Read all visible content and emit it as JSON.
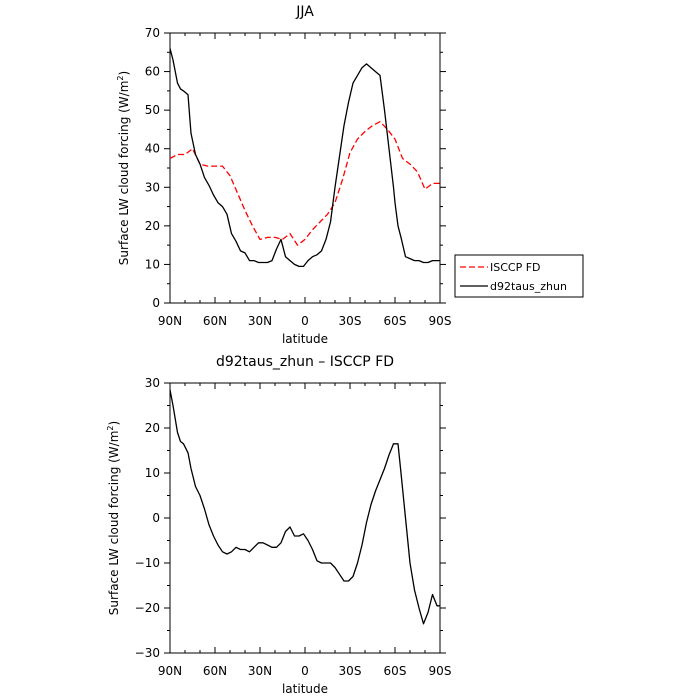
{
  "chart_data": [
    {
      "type": "line",
      "title": "JJA",
      "xlabel": "latitude",
      "ylabel": "Surface LW cloud forcing (W/m",
      "ylabel_sup": "2",
      "ylabel_end": ")",
      "xlim": [
        -90,
        90
      ],
      "ylim": [
        0,
        70
      ],
      "xticks": [
        -90,
        -60,
        -30,
        0,
        30,
        60,
        90
      ],
      "xticklabels": [
        "90N",
        "60N",
        "30N",
        "0",
        "30S",
        "60S",
        "90S"
      ],
      "yticks": [
        0,
        10,
        20,
        30,
        40,
        50,
        60,
        70
      ],
      "yticklabels": [
        "0",
        "10",
        "20",
        "30",
        "40",
        "50",
        "60",
        "70"
      ],
      "legend_position": "right",
      "series": [
        {
          "name": "ISCCP FD",
          "color": "#ff0000",
          "style": "dashed",
          "x": [
            -90,
            -85,
            -80,
            -75,
            -70,
            -65,
            -60,
            -55,
            -50,
            -45,
            -40,
            -35,
            -30,
            -25,
            -20,
            -15,
            -10,
            -5,
            0,
            5,
            10,
            15,
            20,
            25,
            30,
            35,
            40,
            45,
            50,
            55,
            60,
            65,
            70,
            75,
            80,
            85,
            90
          ],
          "values": [
            37.5,
            38.5,
            38.5,
            40,
            36,
            35.5,
            35.5,
            35.5,
            33,
            28.5,
            24,
            20,
            16.5,
            17,
            17,
            16.5,
            18,
            15,
            16.5,
            19,
            21,
            23,
            26,
            32,
            39,
            42.5,
            44.5,
            46,
            47,
            45,
            42.5,
            37.5,
            36,
            34,
            29.5,
            31,
            31
          ]
        },
        {
          "name": "d92taus_zhun",
          "color": "#000000",
          "style": "solid",
          "x": [
            -90,
            -88,
            -85,
            -83,
            -81,
            -78,
            -76,
            -73,
            -70,
            -67,
            -64,
            -61,
            -58,
            -55,
            -52,
            -49,
            -46,
            -43,
            -40,
            -37,
            -34,
            -31,
            -28,
            -25,
            -22,
            -19,
            -16,
            -13,
            -10,
            -7,
            -4,
            -1,
            2,
            5,
            8,
            11,
            14,
            17,
            20,
            23,
            26,
            29,
            32,
            35,
            38,
            41,
            44,
            47,
            50,
            53,
            56,
            59,
            60,
            62,
            64,
            67,
            70,
            73,
            76,
            79,
            82,
            85,
            88,
            90
          ],
          "values": [
            66,
            63,
            57,
            55.5,
            55,
            54,
            44,
            38.5,
            36,
            32.5,
            30.5,
            28,
            26,
            25,
            23,
            18,
            16,
            13.5,
            13,
            11,
            11,
            10.5,
            10.5,
            10.5,
            11,
            14,
            16.5,
            12,
            11,
            10,
            9.5,
            9.5,
            11,
            12,
            12.5,
            13.5,
            16.5,
            21,
            30,
            38,
            46,
            52,
            57,
            59,
            61,
            62,
            61,
            60,
            59,
            50,
            40,
            30,
            26,
            20,
            17,
            12,
            11.5,
            11,
            11,
            10.5,
            10.5,
            11,
            11,
            11
          ]
        }
      ]
    },
    {
      "type": "line",
      "title": "d92taus_zhun – ISCCP FD",
      "xlabel": "latitude",
      "ylabel": "Surface LW cloud forcing (W/m",
      "ylabel_sup": "2",
      "ylabel_end": ")",
      "xlim": [
        -90,
        90
      ],
      "ylim": [
        -30,
        30
      ],
      "xticks": [
        -90,
        -60,
        -30,
        0,
        30,
        60,
        90
      ],
      "xticklabels": [
        "90N",
        "60N",
        "30N",
        "0",
        "30S",
        "60S",
        "90S"
      ],
      "yticks": [
        -30,
        -20,
        -10,
        0,
        10,
        20,
        30
      ],
      "yticklabels": [
        "−30",
        "−20",
        "−10",
        "0",
        "10",
        "20",
        "30"
      ],
      "series": [
        {
          "color": "#000000",
          "style": "solid",
          "x": [
            -90,
            -88,
            -85,
            -83,
            -81,
            -78,
            -76,
            -73,
            -70,
            -67,
            -64,
            -61,
            -58,
            -55,
            -52,
            -49,
            -46,
            -43,
            -40,
            -37,
            -34,
            -31,
            -28,
            -25,
            -22,
            -19,
            -16,
            -13,
            -10,
            -7,
            -4,
            -1,
            2,
            5,
            8,
            11,
            14,
            17,
            20,
            23,
            26,
            29,
            32,
            35,
            38,
            41,
            44,
            47,
            50,
            53,
            56,
            59,
            60,
            62,
            64,
            67,
            70,
            73,
            76,
            79,
            82,
            85,
            88,
            90
          ],
          "values": [
            28.5,
            25,
            19,
            17,
            16.5,
            14.5,
            11,
            7,
            5,
            2,
            -1.5,
            -4,
            -6,
            -7.5,
            -8,
            -7.5,
            -6.5,
            -7,
            -7,
            -7.5,
            -6.5,
            -5.5,
            -5.5,
            -6,
            -6.5,
            -6.5,
            -5.5,
            -3,
            -2,
            -4,
            -4,
            -3.5,
            -5,
            -7,
            -9.5,
            -10,
            -10,
            -10,
            -11,
            -12.5,
            -14,
            -14,
            -13,
            -10,
            -6,
            -1,
            3,
            6,
            8.5,
            11,
            14,
            16.5,
            16.5,
            16.5,
            10,
            0,
            -10,
            -16,
            -20,
            -23.5,
            -21,
            -17,
            -19.5,
            -19.5
          ]
        }
      ]
    }
  ]
}
